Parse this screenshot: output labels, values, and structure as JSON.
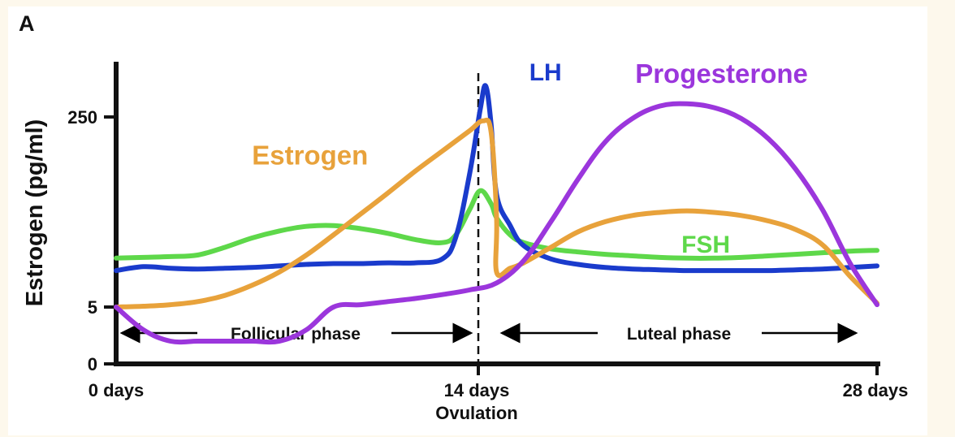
{
  "panel_label": "A",
  "chart_data": {
    "type": "line",
    "ylabel": "Estrogen (pg/ml)",
    "y_ticks": [
      "250",
      "5",
      "0"
    ],
    "x_ticks": [
      "0 days",
      "14 days",
      "28 days"
    ],
    "x_annotation": "Ovulation",
    "phases": [
      "Follicular phase",
      "Luteal phase"
    ],
    "xlim": [
      0,
      28
    ],
    "series": [
      {
        "name": "Estrogen",
        "color": "#e8a23b",
        "label_pos": [
          5,
          189
        ],
        "points": [
          [
            0,
            5
          ],
          [
            1,
            6
          ],
          [
            2,
            8
          ],
          [
            3,
            12
          ],
          [
            4,
            20
          ],
          [
            5,
            33
          ],
          [
            6,
            50
          ],
          [
            7,
            72
          ],
          [
            8,
            98
          ],
          [
            9,
            125
          ],
          [
            10,
            152
          ],
          [
            11,
            180
          ],
          [
            12,
            206
          ],
          [
            13,
            232
          ],
          [
            13.5,
            245
          ],
          [
            13.8,
            230
          ],
          [
            14,
            120
          ],
          [
            14,
            50
          ],
          [
            14.5,
            55
          ],
          [
            15,
            62
          ],
          [
            16,
            82
          ],
          [
            17,
            102
          ],
          [
            18,
            115
          ],
          [
            19,
            123
          ],
          [
            20,
            127
          ],
          [
            21,
            129
          ],
          [
            22,
            127
          ],
          [
            23,
            123
          ],
          [
            24,
            116
          ],
          [
            25,
            105
          ],
          [
            26,
            85
          ],
          [
            27,
            45
          ],
          [
            28,
            10
          ]
        ]
      },
      {
        "name": "LH",
        "color": "#1a3bcc",
        "label_pos": [
          15.2,
          297
        ],
        "points": [
          [
            0,
            52
          ],
          [
            1,
            57
          ],
          [
            2,
            55
          ],
          [
            3,
            54
          ],
          [
            4,
            55
          ],
          [
            5,
            56
          ],
          [
            6,
            58
          ],
          [
            7,
            60
          ],
          [
            8,
            61
          ],
          [
            9,
            61
          ],
          [
            10,
            62
          ],
          [
            11,
            62
          ],
          [
            12,
            67
          ],
          [
            12.5,
            95
          ],
          [
            13,
            175
          ],
          [
            13.4,
            260
          ],
          [
            13.6,
            290
          ],
          [
            13.8,
            240
          ],
          [
            14,
            150
          ],
          [
            14.5,
            110
          ],
          [
            15,
            84
          ],
          [
            16,
            67
          ],
          [
            17,
            60
          ],
          [
            18,
            56
          ],
          [
            19,
            54
          ],
          [
            20,
            53
          ],
          [
            21,
            52
          ],
          [
            22,
            52
          ],
          [
            23,
            52
          ],
          [
            24,
            52
          ],
          [
            25,
            53
          ],
          [
            26,
            54
          ],
          [
            27,
            56
          ],
          [
            28,
            58
          ]
        ]
      },
      {
        "name": "FSH",
        "color": "#5ed84a",
        "label_pos": [
          20.8,
          75
        ],
        "points": [
          [
            0,
            68
          ],
          [
            1,
            69
          ],
          [
            2,
            70
          ],
          [
            3,
            72
          ],
          [
            4,
            82
          ],
          [
            5,
            94
          ],
          [
            6,
            103
          ],
          [
            7,
            109
          ],
          [
            8,
            110
          ],
          [
            9,
            106
          ],
          [
            10,
            100
          ],
          [
            11,
            92
          ],
          [
            12,
            88
          ],
          [
            12.5,
            98
          ],
          [
            13,
            130
          ],
          [
            13.4,
            155
          ],
          [
            13.8,
            138
          ],
          [
            14,
            120
          ],
          [
            14.5,
            98
          ],
          [
            15,
            88
          ],
          [
            16,
            80
          ],
          [
            17,
            76
          ],
          [
            18,
            73
          ],
          [
            19,
            71
          ],
          [
            20,
            69
          ],
          [
            21,
            68
          ],
          [
            22,
            68
          ],
          [
            23,
            69
          ],
          [
            24,
            71
          ],
          [
            25,
            73
          ],
          [
            26,
            75
          ],
          [
            27,
            77
          ],
          [
            28,
            78
          ]
        ]
      },
      {
        "name": "Progesterone",
        "color": "#9b36dc",
        "label_pos": [
          19.1,
          294
        ],
        "points": [
          [
            0,
            5
          ],
          [
            1,
            3
          ],
          [
            2,
            2
          ],
          [
            3,
            2
          ],
          [
            4,
            2
          ],
          [
            5,
            2
          ],
          [
            6,
            2
          ],
          [
            7,
            3
          ],
          [
            8,
            5
          ],
          [
            9,
            8
          ],
          [
            10,
            12
          ],
          [
            11,
            16
          ],
          [
            12,
            21
          ],
          [
            13,
            27
          ],
          [
            14,
            36
          ],
          [
            15,
            65
          ],
          [
            16,
            115
          ],
          [
            17,
            170
          ],
          [
            18,
            218
          ],
          [
            19,
            248
          ],
          [
            20,
            264
          ],
          [
            21,
            267
          ],
          [
            22,
            262
          ],
          [
            23,
            248
          ],
          [
            24,
            222
          ],
          [
            25,
            183
          ],
          [
            26,
            130
          ],
          [
            27,
            62
          ],
          [
            28,
            8
          ]
        ]
      }
    ]
  }
}
